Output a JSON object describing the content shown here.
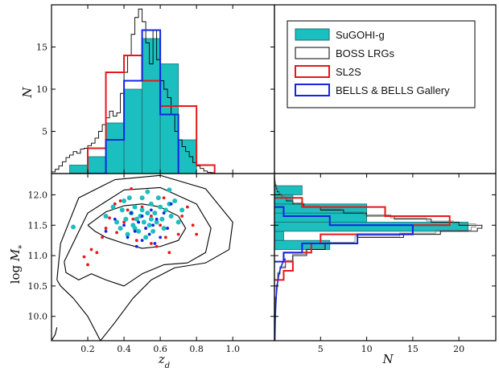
{
  "chart_data": {
    "type": "corner-histogram-scatter",
    "axes": {
      "x_label": "z_d",
      "y_label_top": "N",
      "y_label_bottom": "log M_*",
      "x_label_right": "N",
      "x_ticks": [
        "0.2",
        "0.4",
        "0.6",
        "0.8",
        "1.0"
      ],
      "top_y_ticks": [
        "5",
        "10",
        "15"
      ],
      "bottom_y_ticks": [
        "10.0",
        "10.5",
        "11.0",
        "11.5",
        "12.0"
      ],
      "right_x_ticks": [
        "5",
        "10",
        "15",
        "20"
      ],
      "zd_range": [
        0.0,
        1.23
      ],
      "N_top_range": [
        0,
        20
      ],
      "logM_range": [
        9.6,
        12.35
      ],
      "N_right_range": [
        0,
        24
      ]
    },
    "legend": {
      "placement": "top-right",
      "entries": [
        {
          "label": "SuGOHI-g",
          "style": "filled",
          "color": "#1bbfbf",
          "edge": "#1a6f6f"
        },
        {
          "label": "BOSS LRGs",
          "style": "step",
          "color": "#000000"
        },
        {
          "label": "SL2S",
          "style": "step",
          "color": "#e8161a"
        },
        {
          "label": "BELLS & BELLS Gallery",
          "style": "step",
          "color": "#1424e0"
        }
      ]
    },
    "zd_hist": {
      "sugohi": {
        "edges": [
          0.1,
          0.2,
          0.3,
          0.4,
          0.5,
          0.6,
          0.7,
          0.8
        ],
        "counts": [
          1,
          2,
          6,
          10,
          16,
          13,
          4
        ]
      },
      "sl2s": {
        "edges": [
          0.1,
          0.2,
          0.3,
          0.4,
          0.5,
          0.6,
          0.7,
          0.8,
          0.9
        ],
        "counts": [
          0,
          3,
          12,
          14,
          11,
          8,
          8,
          1
        ]
      },
      "bells": {
        "edges": [
          0.2,
          0.3,
          0.4,
          0.5,
          0.6,
          0.7
        ],
        "counts": [
          0,
          4,
          11,
          17,
          7
        ]
      },
      "boss": {
        "x": [
          0.0,
          0.02,
          0.04,
          0.06,
          0.08,
          0.1,
          0.12,
          0.14,
          0.16,
          0.18,
          0.2,
          0.22,
          0.24,
          0.26,
          0.28,
          0.3,
          0.32,
          0.34,
          0.36,
          0.38,
          0.4,
          0.42,
          0.44,
          0.46,
          0.48,
          0.5,
          0.52,
          0.54,
          0.56,
          0.58,
          0.6,
          0.62,
          0.64,
          0.66,
          0.68,
          0.7,
          0.72,
          0.74,
          0.76,
          0.78,
          0.8,
          0.82,
          0.84,
          0.86,
          0.88,
          0.9
        ],
        "y": [
          0.2,
          0.5,
          0.9,
          1.4,
          1.9,
          2.2,
          2.6,
          2.4,
          2.9,
          3.0,
          3.3,
          3.6,
          4.2,
          5.0,
          5.8,
          6.6,
          7.4,
          6.8,
          7.2,
          9.5,
          12.0,
          14.0,
          16.5,
          18.5,
          19.5,
          18.0,
          15.5,
          13.0,
          17.0,
          13.5,
          11.0,
          10.0,
          9.0,
          7.0,
          5.0,
          4.0,
          3.2,
          2.6,
          2.0,
          1.3,
          0.9,
          0.6,
          0.3,
          0.15,
          0.1,
          0.0
        ]
      }
    },
    "scatter": {
      "sugohi": [
        [
          0.12,
          11.47
        ],
        [
          0.3,
          11.65
        ],
        [
          0.34,
          11.8
        ],
        [
          0.36,
          11.55
        ],
        [
          0.38,
          11.45
        ],
        [
          0.4,
          11.9
        ],
        [
          0.41,
          11.6
        ],
        [
          0.42,
          11.35
        ],
        [
          0.44,
          11.7
        ],
        [
          0.45,
          11.5
        ],
        [
          0.46,
          11.8
        ],
        [
          0.47,
          11.6
        ],
        [
          0.48,
          11.4
        ],
        [
          0.49,
          11.65
        ],
        [
          0.5,
          11.95
        ],
        [
          0.5,
          11.75
        ],
        [
          0.51,
          11.55
        ],
        [
          0.52,
          11.3
        ],
        [
          0.53,
          11.7
        ],
        [
          0.54,
          11.5
        ],
        [
          0.55,
          11.85
        ],
        [
          0.55,
          11.6
        ],
        [
          0.56,
          11.4
        ],
        [
          0.57,
          11.7
        ],
        [
          0.58,
          11.55
        ],
        [
          0.59,
          11.95
        ],
        [
          0.6,
          11.8
        ],
        [
          0.61,
          11.6
        ],
        [
          0.62,
          11.45
        ],
        [
          0.63,
          11.75
        ],
        [
          0.65,
          11.85
        ],
        [
          0.65,
          12.08
        ],
        [
          0.66,
          11.65
        ],
        [
          0.68,
          11.9
        ],
        [
          0.7,
          11.55
        ],
        [
          0.72,
          11.75
        ],
        [
          0.39,
          11.75
        ],
        [
          0.43,
          11.95
        ],
        [
          0.53,
          12.05
        ],
        [
          0.46,
          11.45
        ]
      ],
      "sl2s": [
        [
          0.18,
          10.98
        ],
        [
          0.2,
          10.85
        ],
        [
          0.22,
          11.1
        ],
        [
          0.25,
          11.05
        ],
        [
          0.28,
          11.3
        ],
        [
          0.3,
          11.45
        ],
        [
          0.32,
          11.62
        ],
        [
          0.35,
          11.85
        ],
        [
          0.36,
          11.38
        ],
        [
          0.4,
          11.55
        ],
        [
          0.42,
          11.75
        ],
        [
          0.44,
          12.1
        ],
        [
          0.45,
          11.6
        ],
        [
          0.47,
          11.25
        ],
        [
          0.5,
          11.8
        ],
        [
          0.52,
          11.45
        ],
        [
          0.55,
          11.2
        ],
        [
          0.55,
          11.65
        ],
        [
          0.58,
          11.15
        ],
        [
          0.6,
          11.5
        ],
        [
          0.62,
          11.95
        ],
        [
          0.63,
          11.3
        ],
        [
          0.65,
          11.05
        ],
        [
          0.7,
          11.35
        ],
        [
          0.72,
          11.65
        ],
        [
          0.75,
          11.8
        ],
        [
          0.78,
          11.5
        ],
        [
          0.8,
          11.35
        ],
        [
          0.38,
          11.9
        ],
        [
          0.48,
          11.55
        ]
      ],
      "bells": [
        [
          0.3,
          11.4
        ],
        [
          0.35,
          11.6
        ],
        [
          0.4,
          11.5
        ],
        [
          0.42,
          11.3
        ],
        [
          0.44,
          11.7
        ],
        [
          0.46,
          11.4
        ],
        [
          0.48,
          11.55
        ],
        [
          0.5,
          11.25
        ],
        [
          0.5,
          11.65
        ],
        [
          0.52,
          11.45
        ],
        [
          0.54,
          11.35
        ],
        [
          0.55,
          11.75
        ],
        [
          0.56,
          11.5
        ],
        [
          0.58,
          11.6
        ],
        [
          0.6,
          11.3
        ],
        [
          0.62,
          11.7
        ],
        [
          0.64,
          11.45
        ],
        [
          0.66,
          11.85
        ],
        [
          0.47,
          11.15
        ],
        [
          0.57,
          11.2
        ]
      ]
    },
    "logM_hist": {
      "sugohi": {
        "edges": [
          11.1,
          11.25,
          11.4,
          11.55,
          11.7,
          11.85,
          12.0,
          12.15
        ],
        "counts": [
          6,
          1,
          21,
          10,
          10,
          2,
          3
        ]
      },
      "sl2s": {
        "edges": [
          10.6,
          10.75,
          10.9,
          11.05,
          11.2,
          11.35,
          11.5,
          11.65,
          11.8,
          11.95
        ],
        "counts": [
          1,
          2,
          1,
          4,
          5,
          15,
          19,
          12,
          3
        ]
      },
      "bells": {
        "edges": [
          10.9,
          11.05,
          11.2,
          11.35,
          11.5,
          11.65,
          11.8
        ],
        "counts": [
          1,
          3,
          9,
          15,
          6,
          1
        ]
      },
      "boss": {
        "y": [
          9.6,
          10.0,
          10.3,
          10.5,
          10.7,
          10.8,
          10.9,
          11.0,
          11.1,
          11.2,
          11.3,
          11.35,
          11.4,
          11.45,
          11.5,
          11.55,
          11.6,
          11.65,
          11.7,
          11.75,
          11.8,
          11.85,
          11.9,
          11.95,
          12.0,
          12.05,
          12.1,
          12.15,
          12.2,
          12.25,
          12.3
        ],
        "x": [
          0.02,
          0.08,
          0.2,
          0.35,
          0.6,
          1.2,
          2.0,
          3.5,
          5.5,
          9.0,
          14.0,
          18.0,
          22.0,
          22.5,
          20.0,
          17.0,
          13.0,
          10.0,
          7.5,
          5.0,
          3.2,
          2.0,
          1.3,
          0.8,
          0.5,
          0.3,
          0.2,
          0.1,
          0.05,
          0.02,
          0.0
        ]
      }
    },
    "contours": [
      {
        "zd": [
          0.2,
          0.3,
          0.4,
          0.5,
          0.6,
          0.7,
          0.74,
          0.7,
          0.6,
          0.5,
          0.4,
          0.3,
          0.24,
          0.2
        ],
        "logM": [
          11.5,
          11.72,
          11.82,
          11.85,
          11.8,
          11.65,
          11.45,
          11.25,
          11.15,
          11.12,
          11.2,
          11.3,
          11.4,
          11.5
        ]
      },
      {
        "zd": [
          0.07,
          0.2,
          0.4,
          0.6,
          0.8,
          0.88,
          0.85,
          0.75,
          0.62,
          0.5,
          0.4,
          0.3,
          0.22,
          0.15,
          0.08,
          0.07
        ],
        "logM": [
          10.9,
          11.7,
          12.08,
          12.12,
          11.85,
          11.45,
          11.05,
          10.88,
          10.85,
          10.7,
          10.5,
          10.6,
          10.7,
          10.6,
          10.72,
          10.9
        ]
      },
      {
        "zd": [
          0.03,
          0.05,
          0.15,
          0.35,
          0.6,
          0.85,
          1.0,
          0.98,
          0.85,
          0.68,
          0.55,
          0.45,
          0.35,
          0.27,
          0.2,
          0.12,
          0.05,
          0.03
        ],
        "logM": [
          10.6,
          11.2,
          11.95,
          12.25,
          12.32,
          12.1,
          11.55,
          11.1,
          10.88,
          10.8,
          10.6,
          10.3,
          9.9,
          9.6,
          10.0,
          10.3,
          10.5,
          10.6
        ]
      },
      {
        "zd": [
          0.0,
          0.02,
          0.03
        ],
        "logM": [
          9.6,
          9.7,
          9.82
        ]
      }
    ]
  }
}
